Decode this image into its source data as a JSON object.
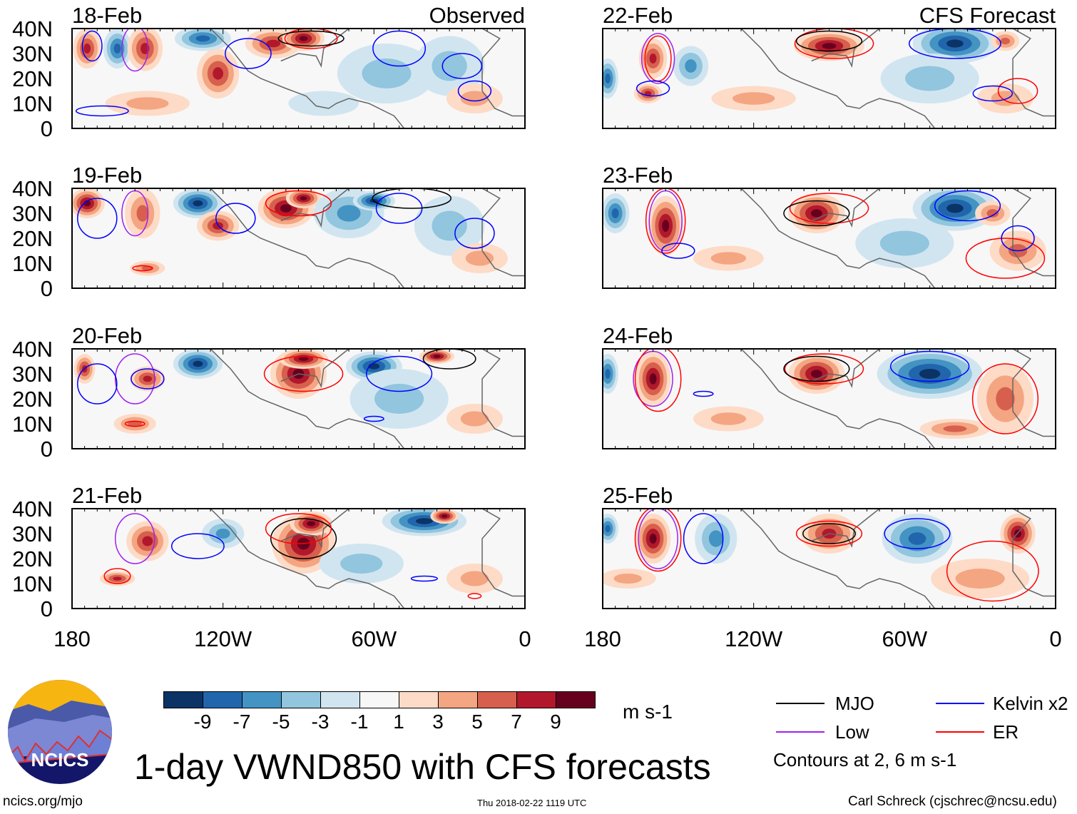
{
  "title": "1-day VWND850 with CFS forecasts",
  "observed_label": "Observed",
  "forecast_label": "CFS Forecast",
  "units": "m s-1",
  "contour_note": "Contours at 2, 6 m s-1",
  "footer": {
    "url": "ncics.org/mjo",
    "timestamp": "Thu 2018-02-22 1119 UTC",
    "author": "Carl Schreck (cjschrec@ncsu.edu)"
  },
  "logo": {
    "text": "NCICS"
  },
  "legend": [
    {
      "name": "MJO",
      "color": "#000000"
    },
    {
      "name": "Kelvin x2",
      "color": "#0000ff"
    },
    {
      "name": "Low",
      "color": "#a020f0"
    },
    {
      "name": "ER",
      "color": "#ff0000"
    }
  ],
  "colorbar": {
    "colors": [
      "#0b3366",
      "#2166ac",
      "#4393c3",
      "#92c5de",
      "#d1e5f0",
      "#f7f7f7",
      "#fddbc7",
      "#f4a582",
      "#d6604d",
      "#b2182b",
      "#67001f"
    ],
    "ticks": [
      "-9",
      "-7",
      "-5",
      "-3",
      "-1",
      "1",
      "3",
      "5",
      "7",
      "9"
    ]
  },
  "axes": {
    "lat_labels": [
      "40N",
      "30N",
      "20N",
      "10N",
      "0"
    ],
    "lon_labels": [
      "180",
      "120W",
      "60W",
      "0"
    ]
  },
  "chart_data": {
    "type": "heatmap",
    "variable": "850 hPa meridional wind anomaly (m s-1)",
    "lon_range_W": [
      180,
      0
    ],
    "lat_range_N": [
      0,
      40
    ],
    "panels": [
      {
        "date": "18-Feb",
        "column": "observed",
        "blobs": [
          [
            174,
            32,
            4,
            8,
            7
          ],
          [
            162,
            32,
            4,
            8,
            -7
          ],
          [
            151,
            32,
            5,
            9,
            7
          ],
          [
            122,
            22,
            6,
            10,
            7
          ],
          [
            128,
            36,
            8,
            5,
            -7
          ],
          [
            100,
            34,
            8,
            6,
            7
          ],
          [
            88,
            36,
            6,
            5,
            9
          ],
          [
            55,
            22,
            14,
            12,
            -3
          ],
          [
            30,
            25,
            10,
            12,
            -3
          ],
          [
            20,
            12,
            8,
            6,
            3
          ],
          [
            150,
            10,
            12,
            5,
            3
          ],
          [
            80,
            10,
            10,
            5,
            -1
          ]
        ],
        "contours": [
          [
            155,
            32,
            4,
            9,
            "Low"
          ],
          [
            172,
            33,
            3,
            6,
            "Kelvin"
          ],
          [
            110,
            30,
            7,
            6,
            "Kelvin"
          ],
          [
            85,
            36,
            8,
            4,
            "ER"
          ],
          [
            50,
            32,
            8,
            7,
            "Kelvin"
          ],
          [
            25,
            25,
            6,
            5,
            "Kelvin"
          ],
          [
            168,
            7,
            8,
            2,
            "Kelvin"
          ],
          [
            20,
            15,
            5,
            4,
            "Kelvin"
          ],
          [
            85,
            36,
            10,
            3,
            "MJO"
          ]
        ]
      },
      {
        "date": "19-Feb",
        "column": "observed",
        "blobs": [
          [
            174,
            34,
            5,
            6,
            9
          ],
          [
            152,
            30,
            5,
            10,
            5
          ],
          [
            130,
            34,
            7,
            6,
            -9
          ],
          [
            122,
            25,
            6,
            6,
            7
          ],
          [
            95,
            32,
            8,
            8,
            9
          ],
          [
            88,
            36,
            5,
            4,
            9
          ],
          [
            70,
            30,
            10,
            10,
            -5
          ],
          [
            60,
            35,
            6,
            4,
            -9
          ],
          [
            30,
            25,
            10,
            12,
            -3
          ],
          [
            150,
            8,
            5,
            3,
            5
          ],
          [
            18,
            12,
            8,
            6,
            3
          ]
        ],
        "contours": [
          [
            155,
            30,
            4,
            9,
            "Low"
          ],
          [
            170,
            28,
            6,
            8,
            "Kelvin"
          ],
          [
            115,
            28,
            6,
            6,
            "Kelvin"
          ],
          [
            90,
            34,
            10,
            5,
            "ER"
          ],
          [
            50,
            32,
            7,
            6,
            "Kelvin"
          ],
          [
            20,
            22,
            6,
            6,
            "Kelvin"
          ],
          [
            152,
            8,
            3,
            1,
            "ER"
          ],
          [
            45,
            36,
            12,
            4,
            "MJO"
          ]
        ]
      },
      {
        "date": "20-Feb",
        "column": "observed",
        "blobs": [
          [
            175,
            32,
            3,
            6,
            7
          ],
          [
            150,
            28,
            5,
            5,
            7
          ],
          [
            130,
            34,
            7,
            6,
            -9
          ],
          [
            90,
            30,
            8,
            10,
            9
          ],
          [
            88,
            36,
            7,
            4,
            9
          ],
          [
            60,
            33,
            8,
            6,
            -9
          ],
          [
            35,
            37,
            5,
            3,
            9
          ],
          [
            50,
            20,
            14,
            12,
            -3
          ],
          [
            155,
            10,
            6,
            4,
            5
          ],
          [
            20,
            12,
            8,
            6,
            3
          ]
        ],
        "contours": [
          [
            155,
            28,
            6,
            10,
            "Low"
          ],
          [
            150,
            28,
            5,
            4,
            "Kelvin"
          ],
          [
            170,
            26,
            6,
            8,
            "Kelvin"
          ],
          [
            88,
            30,
            12,
            7,
            "ER"
          ],
          [
            50,
            30,
            10,
            7,
            "Kelvin"
          ],
          [
            155,
            10,
            3,
            1,
            "ER"
          ],
          [
            30,
            36,
            8,
            4,
            "MJO"
          ],
          [
            60,
            12,
            3,
            1,
            "Kelvin"
          ]
        ]
      },
      {
        "date": "21-Feb",
        "column": "observed",
        "blobs": [
          [
            150,
            27,
            6,
            8,
            7
          ],
          [
            162,
            12,
            5,
            3,
            7
          ],
          [
            88,
            26,
            9,
            12,
            9
          ],
          [
            85,
            34,
            6,
            5,
            9
          ],
          [
            120,
            30,
            6,
            6,
            -5
          ],
          [
            40,
            35,
            12,
            6,
            -9
          ],
          [
            32,
            37,
            4,
            3,
            9
          ],
          [
            65,
            18,
            12,
            8,
            -3
          ],
          [
            20,
            12,
            8,
            6,
            3
          ]
        ],
        "contours": [
          [
            155,
            28,
            6,
            10,
            "Low"
          ],
          [
            130,
            25,
            8,
            5,
            "Kelvin"
          ],
          [
            162,
            13,
            4,
            3,
            "ER"
          ],
          [
            88,
            28,
            10,
            8,
            "MJO"
          ],
          [
            90,
            32,
            10,
            6,
            "ER"
          ],
          [
            40,
            12,
            4,
            1,
            "Kelvin"
          ],
          [
            20,
            5,
            2,
            1,
            "ER"
          ]
        ]
      },
      {
        "date": "22-Feb",
        "column": "forecast",
        "blobs": [
          [
            160,
            28,
            4,
            8,
            7
          ],
          [
            162,
            14,
            4,
            4,
            7
          ],
          [
            178,
            20,
            3,
            8,
            -7
          ],
          [
            145,
            25,
            5,
            8,
            -5
          ],
          [
            90,
            33,
            10,
            6,
            9
          ],
          [
            40,
            34,
            12,
            8,
            -9
          ],
          [
            20,
            35,
            4,
            4,
            5
          ],
          [
            50,
            20,
            14,
            10,
            -3
          ],
          [
            120,
            12,
            12,
            5,
            3
          ],
          [
            20,
            12,
            8,
            6,
            3
          ]
        ],
        "contours": [
          [
            158,
            28,
            5,
            10,
            "Low"
          ],
          [
            158,
            28,
            4,
            9,
            "ER"
          ],
          [
            160,
            16,
            5,
            3,
            "Kelvin"
          ],
          [
            88,
            34,
            12,
            6,
            "ER"
          ],
          [
            90,
            35,
            10,
            4,
            "MJO"
          ],
          [
            40,
            34,
            14,
            6,
            "Kelvin"
          ],
          [
            15,
            15,
            6,
            5,
            "ER"
          ],
          [
            25,
            14,
            6,
            3,
            "Kelvin"
          ]
        ]
      },
      {
        "date": "23-Feb",
        "column": "forecast",
        "blobs": [
          [
            155,
            25,
            5,
            12,
            9
          ],
          [
            175,
            30,
            4,
            8,
            -7
          ],
          [
            95,
            30,
            8,
            8,
            9
          ],
          [
            40,
            32,
            12,
            9,
            -9
          ],
          [
            25,
            30,
            5,
            5,
            5
          ],
          [
            15,
            15,
            8,
            8,
            5
          ],
          [
            60,
            18,
            14,
            10,
            -3
          ],
          [
            130,
            12,
            10,
            5,
            3
          ]
        ],
        "contours": [
          [
            155,
            27,
            5,
            12,
            "Low"
          ],
          [
            155,
            27,
            6,
            13,
            "ER"
          ],
          [
            150,
            15,
            5,
            3,
            "Kelvin"
          ],
          [
            90,
            32,
            12,
            6,
            "ER"
          ],
          [
            95,
            30,
            10,
            5,
            "MJO"
          ],
          [
            35,
            33,
            10,
            6,
            "Kelvin"
          ],
          [
            20,
            12,
            12,
            8,
            "ER"
          ],
          [
            15,
            20,
            5,
            5,
            "Kelvin"
          ]
        ]
      },
      {
        "date": "24-Feb",
        "column": "forecast",
        "blobs": [
          [
            160,
            28,
            5,
            11,
            9
          ],
          [
            178,
            30,
            3,
            8,
            -7
          ],
          [
            95,
            30,
            8,
            8,
            9
          ],
          [
            50,
            30,
            15,
            10,
            -9
          ],
          [
            20,
            20,
            8,
            14,
            5
          ],
          [
            40,
            8,
            10,
            4,
            5
          ],
          [
            130,
            12,
            10,
            5,
            3
          ]
        ],
        "contours": [
          [
            160,
            28,
            6,
            11,
            "Low"
          ],
          [
            158,
            28,
            7,
            13,
            "ER"
          ],
          [
            140,
            22,
            3,
            1,
            "Kelvin"
          ],
          [
            92,
            32,
            12,
            6,
            "ER"
          ],
          [
            95,
            32,
            10,
            5,
            "MJO"
          ],
          [
            50,
            33,
            12,
            6,
            "Kelvin"
          ],
          [
            20,
            20,
            10,
            14,
            "ER"
          ]
        ]
      },
      {
        "date": "25-Feb",
        "column": "forecast",
        "blobs": [
          [
            160,
            28,
            5,
            10,
            9
          ],
          [
            178,
            32,
            3,
            6,
            -7
          ],
          [
            135,
            28,
            6,
            10,
            -5
          ],
          [
            90,
            30,
            8,
            8,
            7
          ],
          [
            55,
            28,
            10,
            10,
            -7
          ],
          [
            15,
            30,
            5,
            8,
            9
          ],
          [
            30,
            12,
            14,
            8,
            3
          ],
          [
            170,
            12,
            8,
            4,
            3
          ]
        ],
        "contours": [
          [
            158,
            28,
            6,
            12,
            "Low"
          ],
          [
            158,
            28,
            7,
            13,
            "ER"
          ],
          [
            140,
            28,
            6,
            10,
            "Kelvin"
          ],
          [
            90,
            30,
            10,
            5,
            "ER"
          ],
          [
            90,
            30,
            8,
            4,
            "MJO"
          ],
          [
            55,
            30,
            10,
            6,
            "Kelvin"
          ],
          [
            25,
            15,
            14,
            12,
            "ER"
          ]
        ]
      }
    ]
  }
}
